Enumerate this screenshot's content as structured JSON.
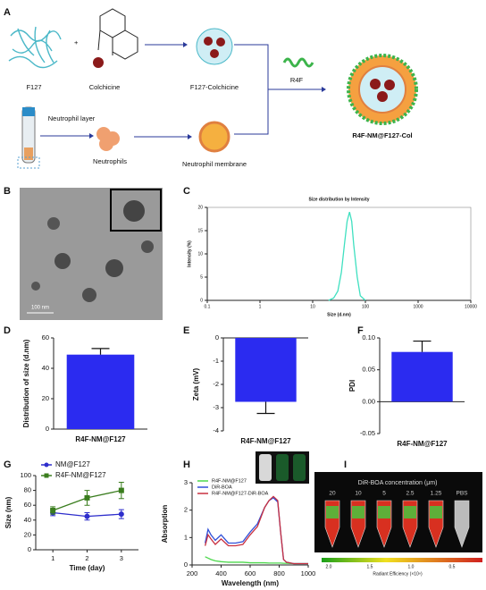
{
  "panel_labels": [
    "A",
    "B",
    "C",
    "D",
    "E",
    "F",
    "G",
    "H",
    "I"
  ],
  "schematic": {
    "f127": "F127",
    "plus": "+",
    "colchicine": "Colchicine",
    "f127_colchicine": "F127-Colchicine",
    "neutrophil_layer": "Neutrophil layer",
    "neutrophils": "Neutrophils",
    "neutrophil_membrane": "Neutrophil membrane",
    "r4f": "R4F",
    "product": "R4F-NM@F127-Col"
  },
  "tem": {
    "scale_bar": "100 nm"
  },
  "imaging": {
    "title": "DiR-BOA concentration (μm)",
    "labels": [
      "20",
      "10",
      "5",
      "2.5",
      "1.25",
      "PBS"
    ],
    "colorbar_ticks": [
      "2.0",
      "1.5",
      "1.0",
      "0.5"
    ],
    "colorbar_label": "Radiant Efficiency (×10⁹)"
  },
  "chart_data": [
    {
      "type": "line",
      "title": "Size distribution by Intensity",
      "x_label": "Size (d.nm)",
      "y_label": "Intensity (%)",
      "xscale": "log",
      "frame": true,
      "xlim": [
        0.1,
        10000
      ],
      "xticks": [
        0.1,
        1,
        10,
        100,
        1000,
        10000
      ],
      "ylim": [
        0,
        20
      ],
      "yticks": [
        0,
        5,
        10,
        15,
        20
      ],
      "x": [
        20,
        25,
        30,
        35,
        40,
        45,
        50,
        55,
        60,
        70,
        80,
        100
      ],
      "series": [
        {
          "name": "Intensity",
          "color": "#3fe0c0",
          "values": [
            0,
            0.5,
            2,
            6,
            12,
            17,
            19,
            17,
            12,
            5,
            1,
            0
          ]
        }
      ]
    },
    {
      "type": "bar",
      "y_label": "Distribution of size (d.nm)",
      "categories": [
        "R4F-NM@F127"
      ],
      "values": [
        49
      ],
      "errors": [
        4
      ],
      "color": "#2b2bf0",
      "ylim": [
        0,
        60
      ],
      "yticks": [
        0,
        20,
        40,
        60
      ]
    },
    {
      "type": "bar",
      "y_label": "Zeta (mV)",
      "categories": [
        "R4F-NM@F127"
      ],
      "values": [
        -2.75
      ],
      "errors": [
        0.5
      ],
      "color": "#2b2bf0",
      "ylim": [
        -4,
        0
      ],
      "yticks": [
        0,
        -1,
        -2,
        -3,
        -4
      ]
    },
    {
      "type": "bar",
      "y_label": "PDI",
      "categories": [
        "R4F-NM@F127"
      ],
      "values": [
        0.078
      ],
      "errors": [
        0.017
      ],
      "color": "#2b2bf0",
      "ylim": [
        -0.05,
        0.1
      ],
      "yticks": [
        -0.05,
        {
          "value": 0,
          "label": "0.00"
        },
        0.05,
        {
          "value": 0.1,
          "label": "0.10"
        }
      ]
    },
    {
      "type": "line",
      "x_label": "Time (day)",
      "y_label": "Size (nm)",
      "legend": "upper left",
      "xlim": [
        0.5,
        3.5
      ],
      "xticks": [
        1,
        2,
        3
      ],
      "ylim": [
        0,
        100
      ],
      "yticks": [
        0,
        20,
        40,
        60,
        80,
        100
      ],
      "x": [
        1,
        2,
        3
      ],
      "series": [
        {
          "name": "NM@F127",
          "color": "#2e2ecc",
          "marker": "circle",
          "values": [
            50,
            45,
            48
          ],
          "errors": [
            4,
            5,
            6
          ]
        },
        {
          "name": "R4F-NM@F127",
          "color": "#3a7d1e",
          "marker": "square",
          "values": [
            53,
            70,
            80
          ],
          "errors": [
            5,
            10,
            11
          ]
        }
      ]
    },
    {
      "type": "line",
      "x_label": "Wavelength (nm)",
      "y_label": "Absorption",
      "legend": "upper left",
      "xlim": [
        200,
        1000
      ],
      "xticks": [
        200,
        400,
        600,
        800,
        1000
      ],
      "ylim": [
        0,
        3
      ],
      "yticks": [
        0,
        1,
        2,
        3
      ],
      "x": [
        290,
        310,
        330,
        360,
        400,
        450,
        500,
        550,
        600,
        650,
        700,
        730,
        760,
        790,
        810,
        830,
        850,
        900,
        1000
      ],
      "series": [
        {
          "name": "R4F-NM@F127",
          "color": "#4cd84c",
          "values": [
            0.3,
            0.25,
            0.2,
            0.15,
            0.12,
            0.1,
            0.1,
            0.1,
            0.08,
            0.08,
            0.08,
            0.07,
            0.07,
            0.07,
            0.07,
            0.06,
            0.06,
            0.05,
            0.05
          ]
        },
        {
          "name": "DiR-BOA",
          "color": "#3050d8",
          "values": [
            0.8,
            1.3,
            1.1,
            0.9,
            1.1,
            0.8,
            0.8,
            0.85,
            1.2,
            1.5,
            2.1,
            2.35,
            2.45,
            2.3,
            1.2,
            0.2,
            0.1,
            0.05,
            0.05
          ]
        },
        {
          "name": "R4F-NM@F127-DiR-BOA",
          "color": "#c83040",
          "values": [
            0.7,
            1.1,
            0.95,
            0.75,
            0.95,
            0.7,
            0.7,
            0.75,
            1.1,
            1.4,
            2.1,
            2.35,
            2.5,
            2.35,
            1.2,
            0.2,
            0.1,
            0.05,
            0.05
          ]
        }
      ]
    }
  ]
}
